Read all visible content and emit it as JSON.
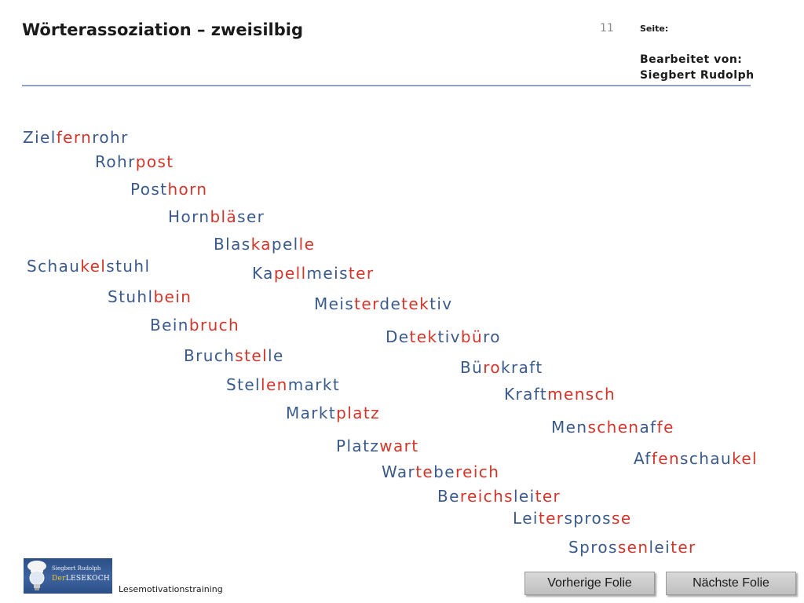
{
  "header": {
    "title": "Wörterassoziation – zweisilbig",
    "slide_number": "11",
    "page_label": "Seite:",
    "editor_label": "Bearbeitet von:",
    "editor_name": "Siegbert Rudolph"
  },
  "colors": {
    "word_base": "#3a5a8c",
    "word_highlight": "#d2352a",
    "header_line": "#8da2c4"
  },
  "words": [
    {
      "segments": [
        {
          "t": "Ziel",
          "hl": false
        },
        {
          "t": "fern",
          "hl": true
        },
        {
          "t": "rohr",
          "hl": false
        }
      ]
    },
    {
      "segments": [
        {
          "t": "Rohr",
          "hl": false
        },
        {
          "t": "post",
          "hl": true
        }
      ]
    },
    {
      "segments": [
        {
          "t": "Post",
          "hl": false
        },
        {
          "t": "horn",
          "hl": true
        }
      ]
    },
    {
      "segments": [
        {
          "t": "Horn",
          "hl": false
        },
        {
          "t": "blä",
          "hl": true
        },
        {
          "t": "ser",
          "hl": false
        }
      ]
    },
    {
      "segments": [
        {
          "t": "Blas",
          "hl": false
        },
        {
          "t": "ka",
          "hl": true
        },
        {
          "t": "pel",
          "hl": false
        },
        {
          "t": "le",
          "hl": true
        }
      ]
    },
    {
      "segments": [
        {
          "t": "Ka",
          "hl": false
        },
        {
          "t": "pell",
          "hl": true
        },
        {
          "t": "meis",
          "hl": false
        },
        {
          "t": "ter",
          "hl": true
        }
      ]
    },
    {
      "segments": [
        {
          "t": "Meis",
          "hl": false
        },
        {
          "t": "ter",
          "hl": true
        },
        {
          "t": "de",
          "hl": false
        },
        {
          "t": "tek",
          "hl": true
        },
        {
          "t": "tiv",
          "hl": false
        }
      ]
    },
    {
      "segments": [
        {
          "t": "De",
          "hl": false
        },
        {
          "t": "tek",
          "hl": true
        },
        {
          "t": "tiv",
          "hl": false
        },
        {
          "t": "bü",
          "hl": true
        },
        {
          "t": "ro",
          "hl": false
        }
      ]
    },
    {
      "segments": [
        {
          "t": "Bü",
          "hl": false
        },
        {
          "t": "ro",
          "hl": true
        },
        {
          "t": "kraft",
          "hl": false
        }
      ]
    },
    {
      "segments": [
        {
          "t": "Kraft",
          "hl": false
        },
        {
          "t": "mensch",
          "hl": true
        }
      ]
    },
    {
      "segments": [
        {
          "t": "Men",
          "hl": false
        },
        {
          "t": "schen",
          "hl": true
        },
        {
          "t": "af",
          "hl": false
        },
        {
          "t": "fe",
          "hl": true
        }
      ]
    },
    {
      "segments": [
        {
          "t": "Af",
          "hl": false
        },
        {
          "t": "fen",
          "hl": true
        },
        {
          "t": "schau",
          "hl": false
        },
        {
          "t": "kel",
          "hl": true
        }
      ]
    },
    {
      "segments": [
        {
          "t": "Schau",
          "hl": false
        },
        {
          "t": "kel",
          "hl": true
        },
        {
          "t": "stuhl",
          "hl": false
        }
      ]
    },
    {
      "segments": [
        {
          "t": "Stuhl",
          "hl": false
        },
        {
          "t": "bein",
          "hl": true
        }
      ]
    },
    {
      "segments": [
        {
          "t": "Bein",
          "hl": false
        },
        {
          "t": "bruch",
          "hl": true
        }
      ]
    },
    {
      "segments": [
        {
          "t": "Bruch",
          "hl": false
        },
        {
          "t": "stel",
          "hl": true
        },
        {
          "t": "le",
          "hl": false
        }
      ]
    },
    {
      "segments": [
        {
          "t": "Stel",
          "hl": false
        },
        {
          "t": "len",
          "hl": true
        },
        {
          "t": "markt",
          "hl": false
        }
      ]
    },
    {
      "segments": [
        {
          "t": "Markt",
          "hl": false
        },
        {
          "t": "platz",
          "hl": true
        }
      ]
    },
    {
      "segments": [
        {
          "t": "Platz",
          "hl": false
        },
        {
          "t": "wart",
          "hl": true
        }
      ]
    },
    {
      "segments": [
        {
          "t": "War",
          "hl": false
        },
        {
          "t": "te",
          "hl": true
        },
        {
          "t": "be",
          "hl": false
        },
        {
          "t": "reich",
          "hl": true
        }
      ]
    },
    {
      "segments": [
        {
          "t": "Be",
          "hl": false
        },
        {
          "t": "reichs",
          "hl": true
        },
        {
          "t": "lei",
          "hl": false
        },
        {
          "t": "ter",
          "hl": true
        }
      ]
    },
    {
      "segments": [
        {
          "t": "Lei",
          "hl": false
        },
        {
          "t": "ter",
          "hl": true
        },
        {
          "t": "spros",
          "hl": false
        },
        {
          "t": "se",
          "hl": true
        }
      ]
    },
    {
      "segments": [
        {
          "t": "Spros",
          "hl": false
        },
        {
          "t": "sen",
          "hl": true
        },
        {
          "t": "lei",
          "hl": false
        },
        {
          "t": "ter",
          "hl": true
        }
      ]
    }
  ],
  "footer": {
    "logo_name": "Siegbert Rudolph",
    "logo_brand_prefix": "Der",
    "logo_brand_main": "LESEKOCH",
    "label": "Lesemotivationstraining"
  },
  "nav": {
    "prev_label": "Vorherige Folie",
    "next_label": "Nächste Folie"
  }
}
